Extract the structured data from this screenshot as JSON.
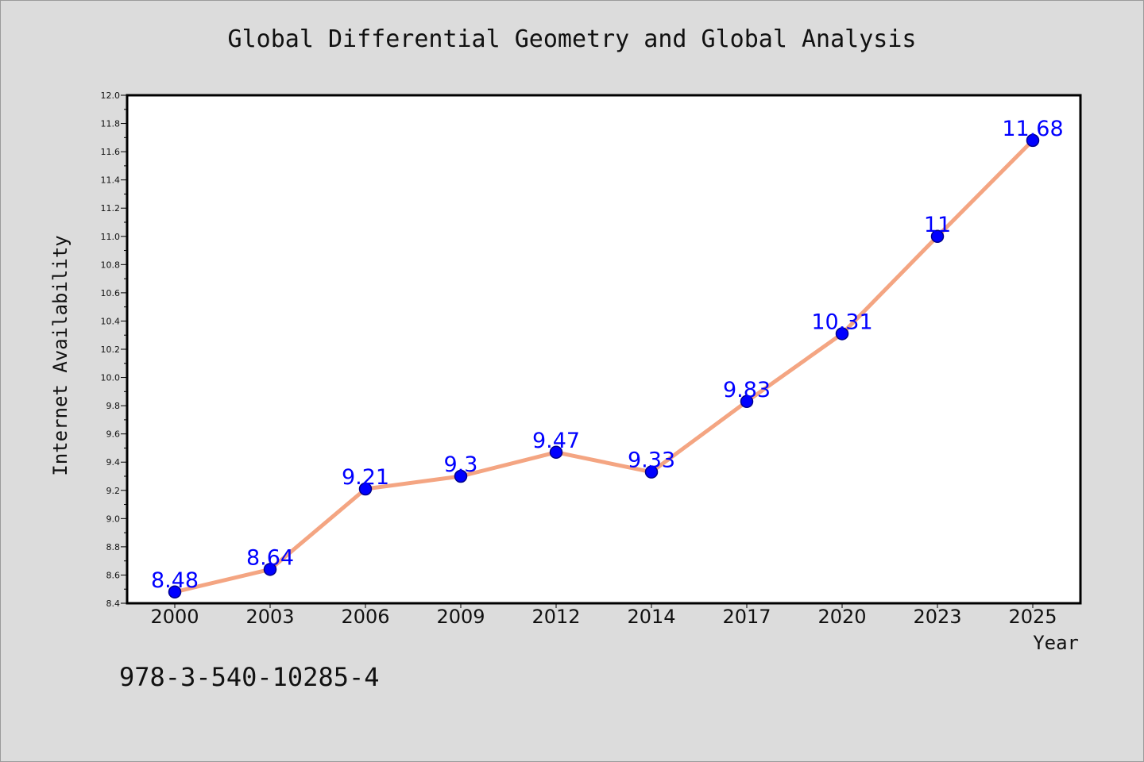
{
  "colors": {
    "background": "#dcdcdc",
    "plot_background": "#ffffff",
    "line": "#f4a582",
    "marker": "#0000ff",
    "marker_edge": "#00008b",
    "data_label": "#0000ff"
  },
  "footnote": "978-3-540-10285-4",
  "chart_data": {
    "type": "line",
    "title": "Global Differential Geometry and Global Analysis",
    "xlabel": "Year",
    "ylabel": "Internet Availability",
    "categories": [
      "2000",
      "2003",
      "2006",
      "2009",
      "2012",
      "2014",
      "2017",
      "2020",
      "2023",
      "2025"
    ],
    "series": [
      {
        "values": [
          8.48,
          8.64,
          9.21,
          9.3,
          9.47,
          9.33,
          9.83,
          10.31,
          11,
          11.68
        ],
        "data_labels": [
          "8.48",
          "8.64",
          "9.21",
          "9.3",
          "9.47",
          "9.33",
          "9.83",
          "10.31",
          "11",
          "11.68"
        ]
      }
    ],
    "ylim": [
      8.4,
      12.0
    ],
    "yticks": [
      "8.4",
      "8.6",
      "8.8",
      "9.0",
      "9.2",
      "9.4",
      "9.6",
      "9.8",
      "10.0",
      "10.2",
      "10.4",
      "10.6",
      "10.8",
      "11.0",
      "11.2",
      "11.4",
      "11.6",
      "11.8",
      "12.0"
    ],
    "grid": false,
    "legend": "none"
  }
}
